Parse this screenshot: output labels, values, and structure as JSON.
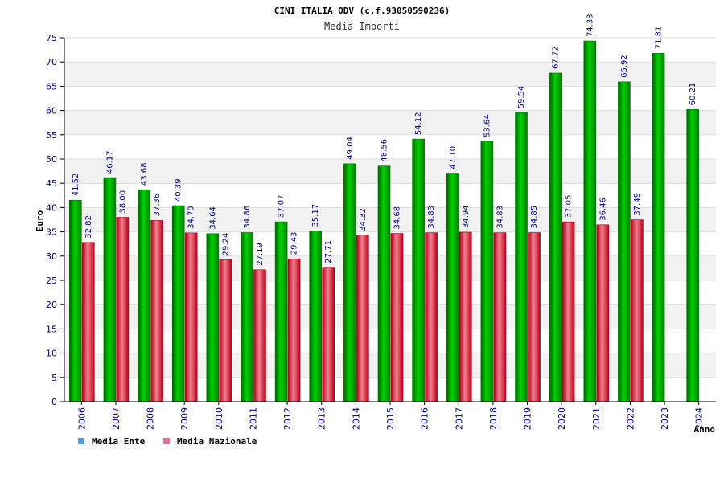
{
  "chart_data": {
    "type": "bar",
    "title": "CINI ITALIA ODV (c.f.93050590236)",
    "subtitle": "Media Importi",
    "xlabel": "Anno",
    "ylabel": "Euro",
    "ylim": [
      0,
      75
    ],
    "yticks": [
      0,
      5,
      10,
      15,
      20,
      25,
      30,
      35,
      40,
      45,
      50,
      55,
      60,
      65,
      70,
      75
    ],
    "grid": true,
    "legend_position": "bottom-left",
    "categories": [
      "2006",
      "2007",
      "2008",
      "2009",
      "2010",
      "2011",
      "2012",
      "2013",
      "2014",
      "2015",
      "2016",
      "2017",
      "2018",
      "2019",
      "2020",
      "2021",
      "2022",
      "2023",
      "2024"
    ],
    "series": [
      {
        "name": "Media Ente",
        "color": "#00b400",
        "legend_color": "#5b9bd5",
        "values": [
          41.52,
          46.17,
          43.68,
          40.39,
          34.64,
          34.86,
          37.07,
          35.17,
          49.04,
          48.56,
          54.12,
          47.1,
          53.64,
          59.54,
          67.72,
          74.33,
          65.92,
          71.81,
          60.21
        ],
        "labels": [
          "41.52",
          "46.17",
          "43.68",
          "40.39",
          "34.64",
          "34.86",
          "37.07",
          "35.17",
          "49.04",
          "48.56",
          "54.12",
          "47.10",
          "53.64",
          "59.54",
          "67.72",
          "74.33",
          "65.92",
          "71.81",
          "60.21"
        ]
      },
      {
        "name": "Media Nazionale",
        "color": "#e8323c",
        "legend_color": "#d9739a",
        "values": [
          32.82,
          38.0,
          37.36,
          34.79,
          29.24,
          27.19,
          29.43,
          27.71,
          34.32,
          34.68,
          34.83,
          34.94,
          34.83,
          34.85,
          37.05,
          36.46,
          37.49,
          null,
          null
        ],
        "labels": [
          "32.82",
          "38.00",
          "37.36",
          "34.79",
          "29.24",
          "27.19",
          "29.43",
          "27.71",
          "34.32",
          "34.68",
          "34.83",
          "34.94",
          "34.83",
          "34.85",
          "37.05",
          "36.46",
          "37.49",
          "",
          ""
        ]
      }
    ]
  }
}
